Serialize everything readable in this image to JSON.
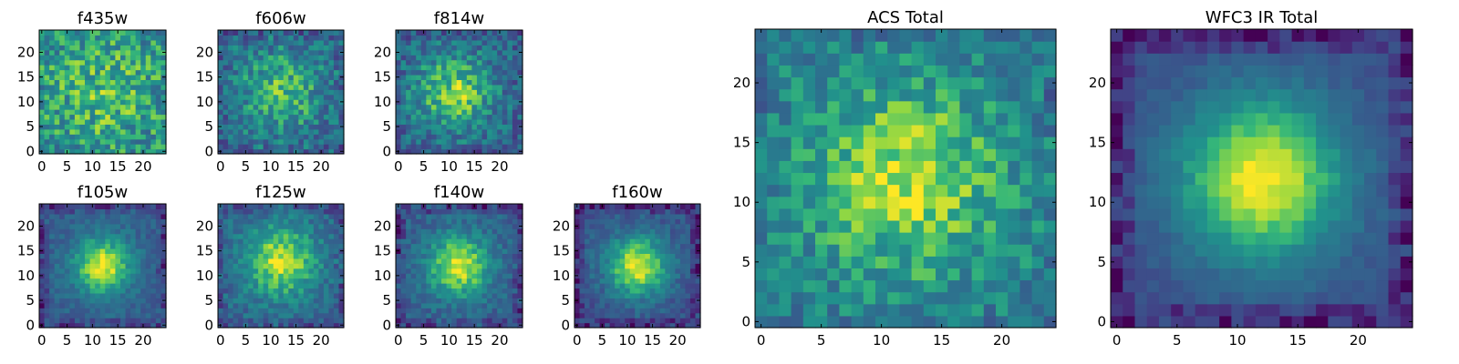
{
  "chart_data": [
    {
      "type": "heatmap",
      "title": "f435w",
      "xticks": [
        "0",
        "5",
        "10",
        "15",
        "20"
      ],
      "yticks": [
        "0",
        "5",
        "10",
        "15",
        "20"
      ],
      "xlim": [
        -0.5,
        24.5
      ],
      "ylim": [
        -0.5,
        24.5
      ],
      "grid_size": 25,
      "colormap": "viridis",
      "peak": [
        12,
        12
      ],
      "profile": {
        "base": 0.58,
        "amp": 0.18,
        "sigma": 7.5,
        "noise": 0.45,
        "edge": 0.0,
        "seed": 11
      }
    },
    {
      "type": "heatmap",
      "title": "f606w",
      "xticks": [
        "0",
        "5",
        "10",
        "15",
        "20"
      ],
      "yticks": [
        "0",
        "5",
        "10",
        "15",
        "20"
      ],
      "xlim": [
        -0.5,
        24.5
      ],
      "ylim": [
        -0.5,
        24.5
      ],
      "grid_size": 25,
      "colormap": "viridis",
      "peak": [
        12,
        12
      ],
      "profile": {
        "base": 0.42,
        "amp": 0.35,
        "sigma": 6.0,
        "noise": 0.4,
        "edge": 0.05,
        "seed": 23
      }
    },
    {
      "type": "heatmap",
      "title": "f814w",
      "xticks": [
        "0",
        "5",
        "10",
        "15",
        "20"
      ],
      "yticks": [
        "0",
        "5",
        "10",
        "15",
        "20"
      ],
      "xlim": [
        -0.5,
        24.5
      ],
      "ylim": [
        -0.5,
        24.5
      ],
      "grid_size": 25,
      "colormap": "viridis",
      "peak": [
        11,
        12
      ],
      "profile": {
        "base": 0.4,
        "amp": 0.45,
        "sigma": 5.5,
        "noise": 0.38,
        "edge": 0.05,
        "seed": 37
      }
    },
    {
      "type": "heatmap",
      "title": "f105w",
      "xticks": [
        "0",
        "5",
        "10",
        "15",
        "20"
      ],
      "yticks": [
        "0",
        "5",
        "10",
        "15",
        "20"
      ],
      "xlim": [
        -0.5,
        24.5
      ],
      "ylim": [
        -0.5,
        24.5
      ],
      "grid_size": 25,
      "colormap": "viridis",
      "peak": [
        12,
        12
      ],
      "profile": {
        "base": 0.38,
        "amp": 0.6,
        "sigma": 4.0,
        "noise": 0.18,
        "edge": 0.15,
        "seed": 41
      }
    },
    {
      "type": "heatmap",
      "title": "f125w",
      "xticks": [
        "0",
        "5",
        "10",
        "15",
        "20"
      ],
      "yticks": [
        "0",
        "5",
        "10",
        "15",
        "20"
      ],
      "xlim": [
        -0.5,
        24.5
      ],
      "ylim": [
        -0.5,
        24.5
      ],
      "grid_size": 25,
      "colormap": "viridis",
      "peak": [
        12,
        13
      ],
      "profile": {
        "base": 0.42,
        "amp": 0.52,
        "sigma": 5.0,
        "noise": 0.25,
        "edge": 0.12,
        "seed": 53
      }
    },
    {
      "type": "heatmap",
      "title": "f140w",
      "xticks": [
        "0",
        "5",
        "10",
        "15",
        "20"
      ],
      "yticks": [
        "0",
        "5",
        "10",
        "15",
        "20"
      ],
      "xlim": [
        -0.5,
        24.5
      ],
      "ylim": [
        -0.5,
        24.5
      ],
      "grid_size": 25,
      "colormap": "viridis",
      "peak": [
        12,
        12
      ],
      "profile": {
        "base": 0.38,
        "amp": 0.58,
        "sigma": 4.5,
        "noise": 0.22,
        "edge": 0.15,
        "seed": 67
      }
    },
    {
      "type": "heatmap",
      "title": "f160w",
      "xticks": [
        "0",
        "5",
        "10",
        "15",
        "20"
      ],
      "yticks": [
        "0",
        "5",
        "10",
        "15",
        "20"
      ],
      "xlim": [
        -0.5,
        24.5
      ],
      "ylim": [
        -0.5,
        24.5
      ],
      "grid_size": 25,
      "colormap": "viridis",
      "peak": [
        12,
        12
      ],
      "profile": {
        "base": 0.32,
        "amp": 0.64,
        "sigma": 4.5,
        "noise": 0.2,
        "edge": 0.18,
        "seed": 79
      }
    },
    {
      "type": "heatmap",
      "title": "ACS Total",
      "xticks": [
        "0",
        "5",
        "10",
        "15",
        "20"
      ],
      "yticks": [
        "0",
        "5",
        "10",
        "15",
        "20"
      ],
      "xlim": [
        -0.5,
        24.5
      ],
      "ylim": [
        -0.5,
        24.5
      ],
      "grid_size": 25,
      "colormap": "viridis",
      "peak": [
        12,
        12
      ],
      "profile": {
        "base": 0.52,
        "amp": 0.4,
        "sigma": 5.5,
        "noise": 0.32,
        "edge": 0.05,
        "seed": 97
      }
    },
    {
      "type": "heatmap",
      "title": "WFC3 IR Total",
      "xticks": [
        "0",
        "5",
        "10",
        "15",
        "20"
      ],
      "yticks": [
        "0",
        "5",
        "10",
        "15",
        "20"
      ],
      "xlim": [
        -0.5,
        24.5
      ],
      "ylim": [
        -0.5,
        24.5
      ],
      "grid_size": 25,
      "colormap": "viridis",
      "peak": [
        12,
        12
      ],
      "profile": {
        "base": 0.3,
        "amp": 0.7,
        "sigma": 5.0,
        "noise": 0.1,
        "edge": 0.2,
        "seed": 113
      }
    }
  ]
}
